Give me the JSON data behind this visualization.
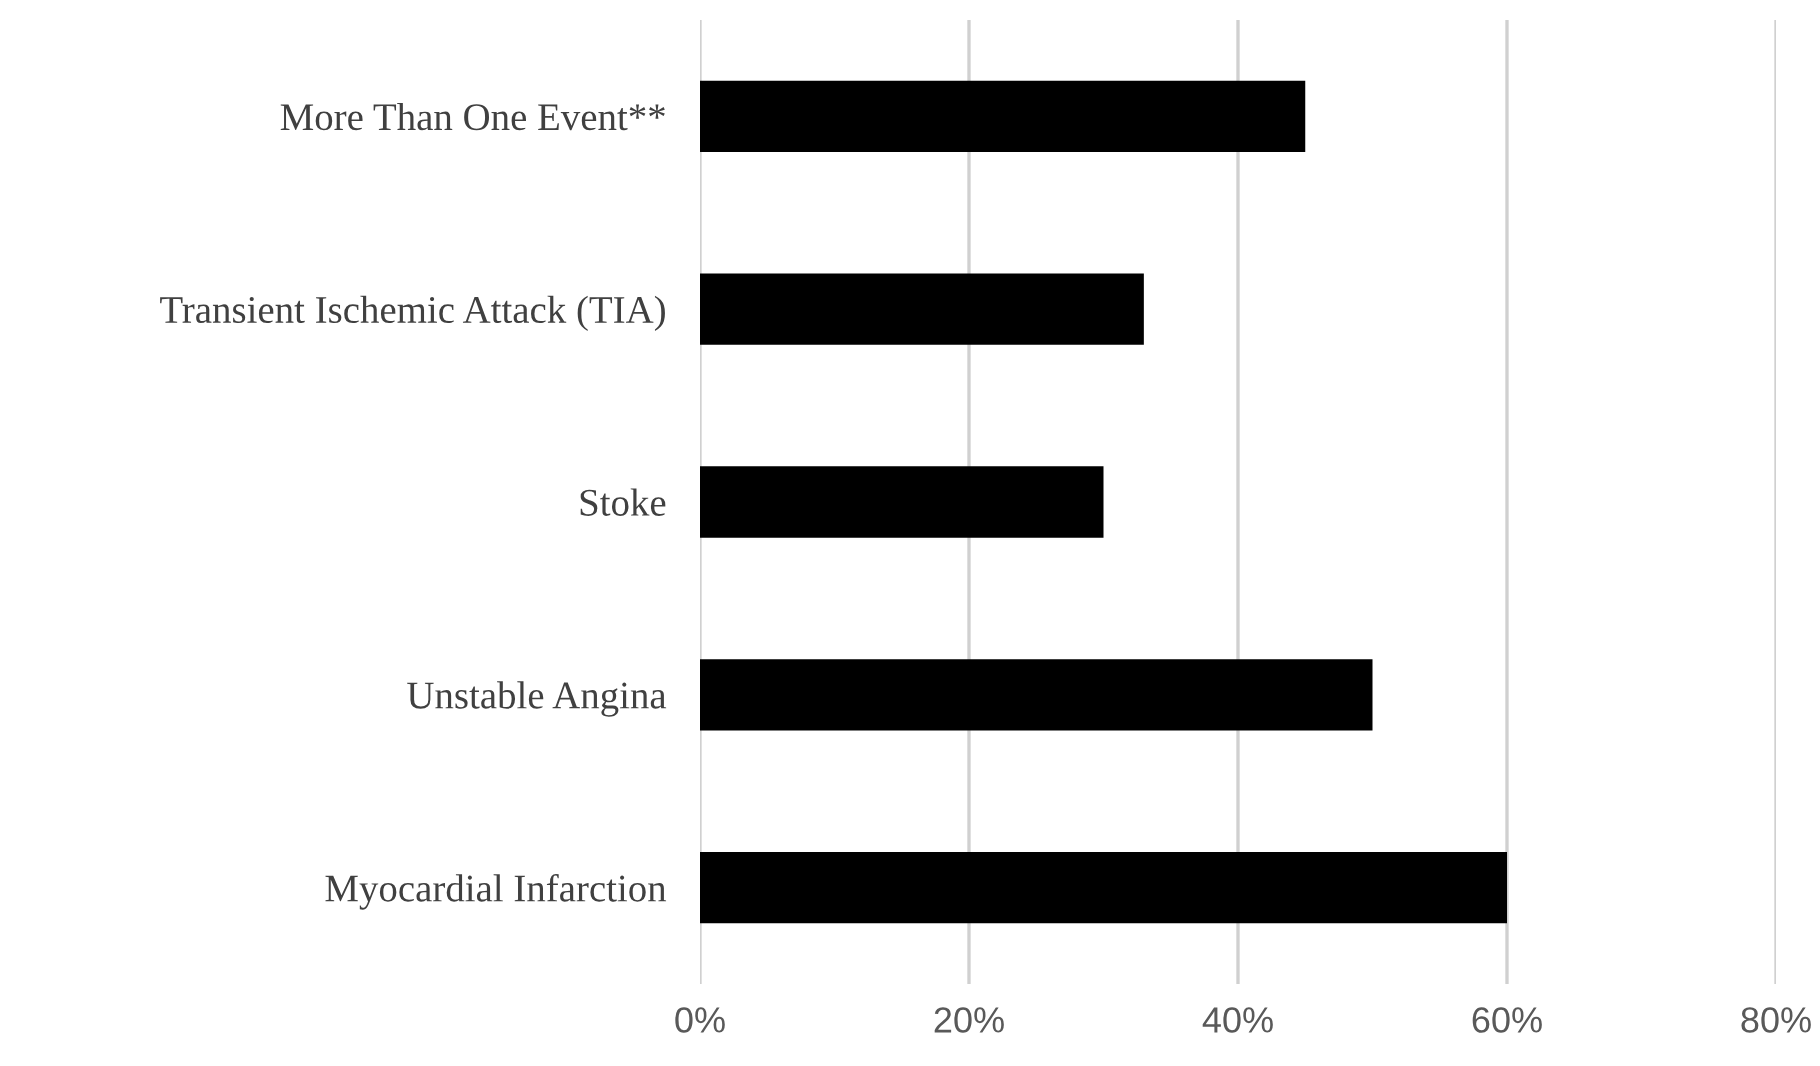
{
  "chart_data": {
    "type": "bar",
    "orientation": "horizontal",
    "categories": [
      "More Than One Event**",
      "Transient Ischemic Attack (TIA)",
      "Stoke",
      "Unstable Angina",
      "Myocardial Infarction"
    ],
    "values": [
      45,
      33,
      30,
      50,
      60
    ],
    "color": "#000000",
    "xlim": [
      0,
      80
    ],
    "xticks": [
      {
        "value": 0,
        "label": "0%"
      },
      {
        "value": 20,
        "label": "20%"
      },
      {
        "value": 40,
        "label": "40%"
      },
      {
        "value": 60,
        "label": "60%"
      },
      {
        "value": 80,
        "label": "80%"
      }
    ],
    "grid": "x"
  }
}
